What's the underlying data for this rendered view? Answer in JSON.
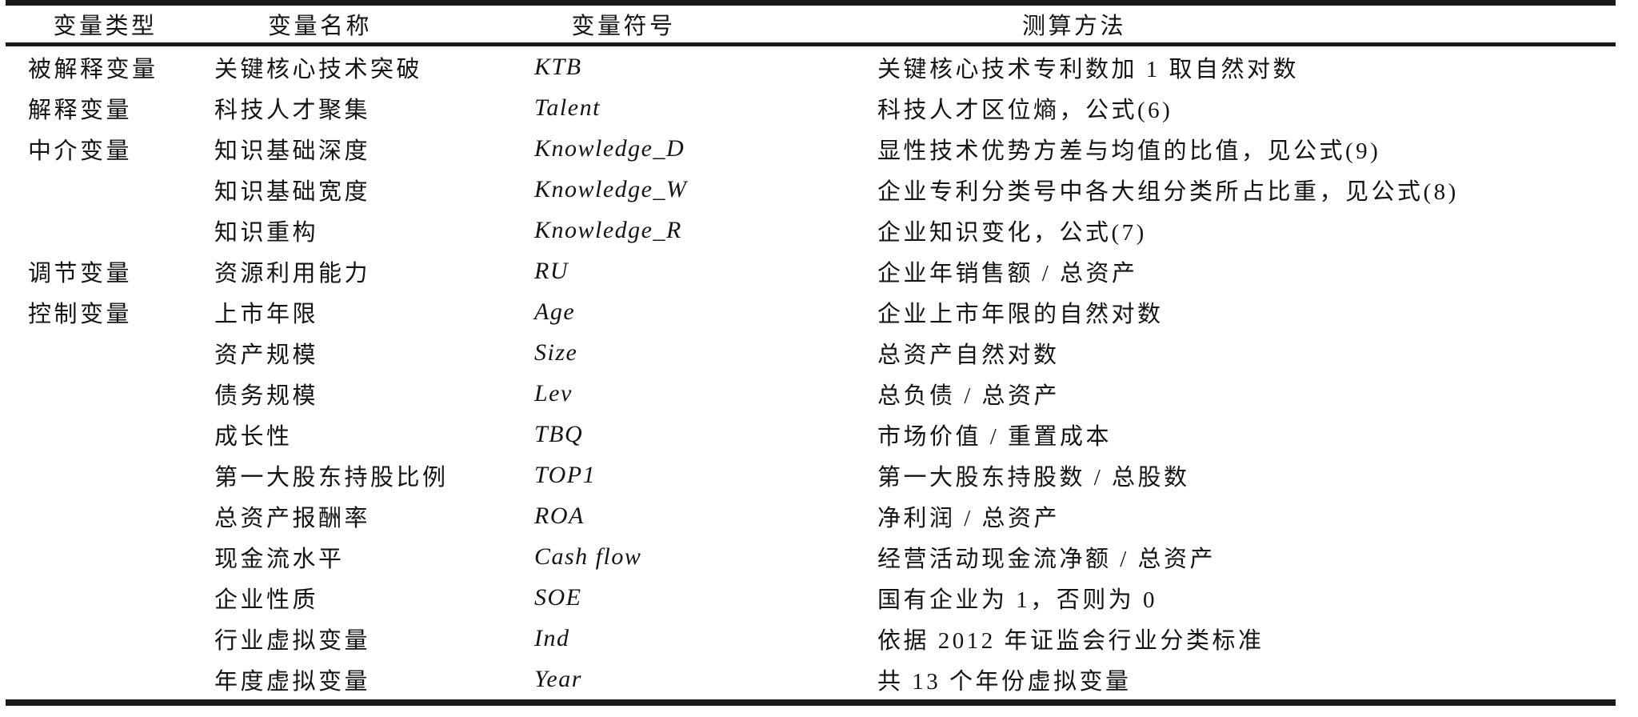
{
  "table": {
    "title_semantic": "variable-definitions-table",
    "headers": [
      "变量类型",
      "变量名称",
      "变量符号",
      "测算方法"
    ],
    "rows": [
      {
        "type": "被解释变量",
        "name": "关键核心技术突破",
        "symbol": "KTB",
        "method": "关键核心技术专利数加 1 取自然对数"
      },
      {
        "type": "解释变量",
        "name": "科技人才聚集",
        "symbol": "Talent",
        "method": "科技人才区位熵，公式(6)"
      },
      {
        "type": "中介变量",
        "name": "知识基础深度",
        "symbol": "Knowledge_D",
        "method": "显性技术优势方差与均值的比值，见公式(9)"
      },
      {
        "type": "",
        "name": "知识基础宽度",
        "symbol": "Knowledge_W",
        "method": "企业专利分类号中各大组分类所占比重，见公式(8)"
      },
      {
        "type": "",
        "name": "知识重构",
        "symbol": "Knowledge_R",
        "method": "企业知识变化，公式(7)"
      },
      {
        "type": "调节变量",
        "name": "资源利用能力",
        "symbol": "RU",
        "method": "企业年销售额 / 总资产"
      },
      {
        "type": "控制变量",
        "name": "上市年限",
        "symbol": "Age",
        "method": "企业上市年限的自然对数"
      },
      {
        "type": "",
        "name": "资产规模",
        "symbol": "Size",
        "method": "总资产自然对数"
      },
      {
        "type": "",
        "name": "债务规模",
        "symbol": "Lev",
        "method": "总负债 / 总资产"
      },
      {
        "type": "",
        "name": "成长性",
        "symbol": "TBQ",
        "method": "市场价值 / 重置成本"
      },
      {
        "type": "",
        "name": "第一大股东持股比例",
        "symbol": "TOP1",
        "method": "第一大股东持股数 / 总股数"
      },
      {
        "type": "",
        "name": "总资产报酬率",
        "symbol": "ROA",
        "method": "净利润 / 总资产"
      },
      {
        "type": "",
        "name": "现金流水平",
        "symbol": "Cash flow",
        "method": "经营活动现金流净额 / 总资产"
      },
      {
        "type": "",
        "name": "企业性质",
        "symbol": "SOE",
        "method": "国有企业为 1，否则为 0"
      },
      {
        "type": "",
        "name": "行业虚拟变量",
        "symbol": "Ind",
        "method": "依据 2012 年证监会行业分类标准"
      },
      {
        "type": "",
        "name": "年度虚拟变量",
        "symbol": "Year",
        "method": "共 13 个年份虚拟变量"
      }
    ],
    "rule_color": "#1b1b1b",
    "text_color": "#141414"
  }
}
